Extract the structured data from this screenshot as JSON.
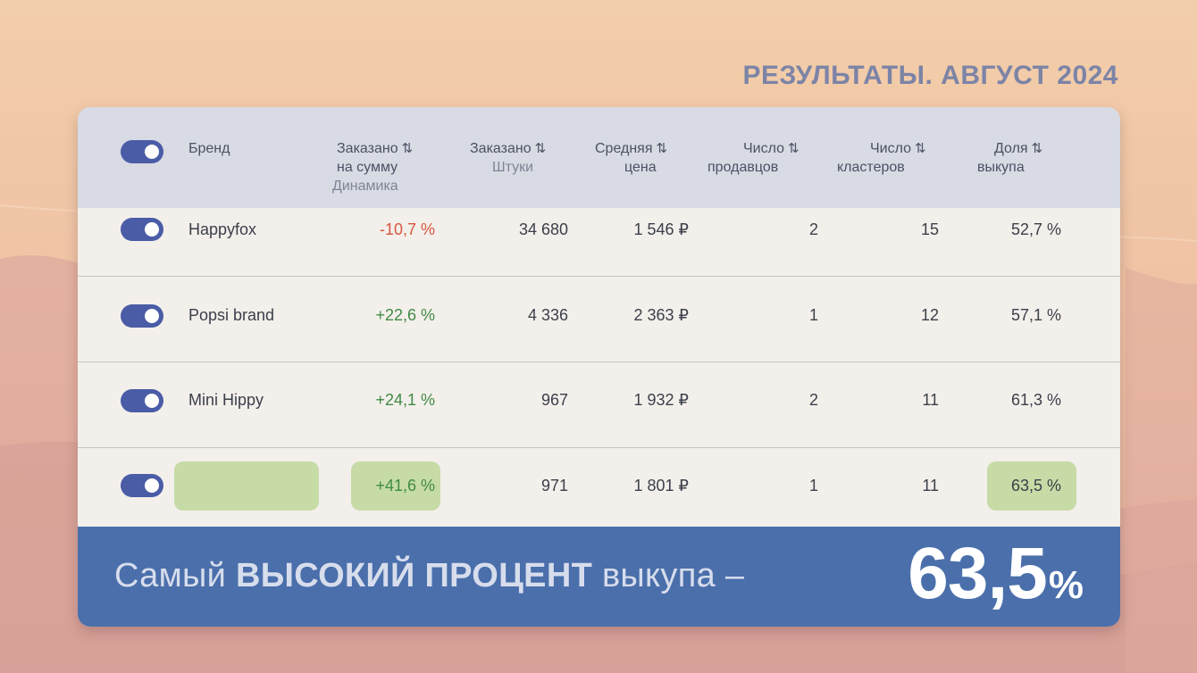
{
  "page": {
    "title": "РЕЗУЛЬТАТЫ. АВГУСТ 2024"
  },
  "colors": {
    "accent": "#4a5ca6",
    "banner": "#4a6fab",
    "highlight": "#c6dba6",
    "negative": "#d9573f",
    "positive": "#3f8b44"
  },
  "table": {
    "headers": {
      "brand": "Бренд",
      "ordered_sum_1": "Заказано",
      "ordered_sum_2": "на сумму",
      "ordered_sum_sub": "Динамика",
      "ordered_qty_1": "Заказано",
      "ordered_qty_sub": "Штуки",
      "avg_price_1": "Средняя",
      "avg_price_2": "цена",
      "sellers_1": "Число",
      "sellers_2": "продавцов",
      "clusters_1": "Число",
      "clusters_2": "кластеров",
      "buyout_1": "Доля",
      "buyout_2": "выкупа",
      "sort_icon": "⇅"
    },
    "rows": [
      {
        "brand": "Happyfox",
        "dynamics": "-10,7 %",
        "qty": "34 680",
        "price": "1 546 ₽",
        "sellers": "2",
        "clusters": "15",
        "buyout": "52,7 %"
      },
      {
        "brand": "Popsi brand",
        "dynamics": "+22,6 %",
        "qty": "4 336",
        "price": "2 363 ₽",
        "sellers": "1",
        "clusters": "12",
        "buyout": "57,1 %"
      },
      {
        "brand": "Mini Hippy",
        "dynamics": "+24,1 %",
        "qty": "967",
        "price": "1 932 ₽",
        "sellers": "2",
        "clusters": "11",
        "buyout": "61,3 %"
      },
      {
        "brand": "",
        "dynamics": "+41,6 %",
        "qty": "971",
        "price": "1 801 ₽",
        "sellers": "1",
        "clusters": "11",
        "buyout": "63,5 %"
      }
    ]
  },
  "banner": {
    "part1": "Самый",
    "part2": "ВЫСОКИЙ ПРОЦЕНТ",
    "part3": "выкупа –",
    "value": "63,5",
    "unit": "%"
  }
}
